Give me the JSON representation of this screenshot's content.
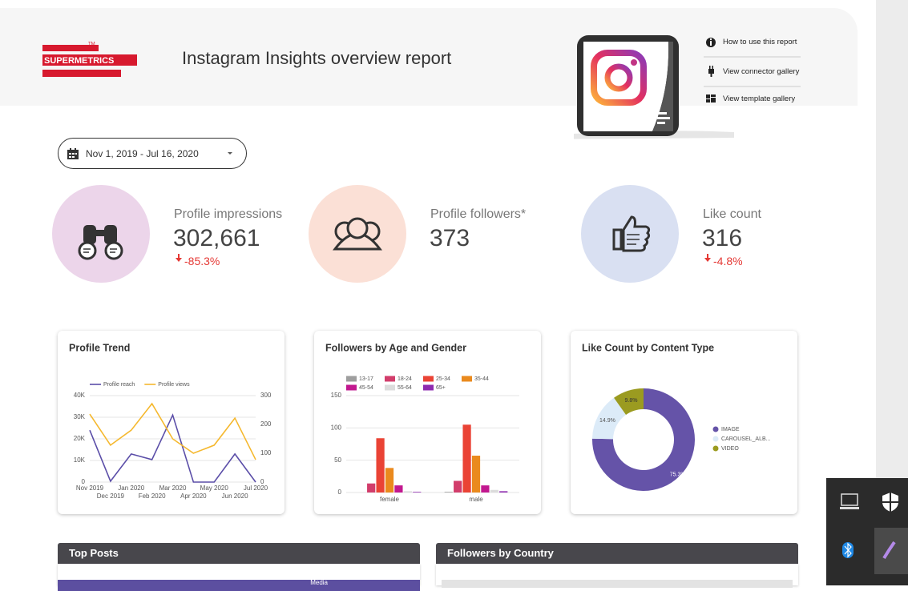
{
  "header": {
    "logo": "SUPERMETRICS",
    "trademark": "TM",
    "title": "Instagram Insights overview report",
    "links": [
      "How to use this report",
      "View connector gallery",
      "View template gallery"
    ]
  },
  "date_range": "Nov 1, 2019 - Jul 16, 2020",
  "kpis": [
    {
      "label": "Profile impressions",
      "value": "302,661",
      "change": "-85.3%"
    },
    {
      "label": "Profile followers*",
      "value": "373"
    },
    {
      "label": "Like count",
      "value": "316",
      "change": "-4.8%"
    }
  ],
  "chart_data": [
    {
      "type": "line",
      "title": "Profile Trend",
      "categories": [
        "Nov 2019",
        "Dec 2019",
        "Jan 2020",
        "Feb 2020",
        "Mar 2020",
        "Apr 2020",
        "May 2020",
        "Jun 2020",
        "Jul 2020"
      ],
      "series": [
        {
          "name": "Profile reach",
          "color": "#5b4ea8",
          "values": [
            24000,
            400,
            13000,
            10400,
            31000,
            0,
            0,
            13000,
            0
          ]
        },
        {
          "name": "Profile views",
          "color": "#f5b82e",
          "axis": "y2",
          "values": [
            236,
            128,
            180,
            272,
            150,
            100,
            128,
            222,
            78
          ]
        }
      ],
      "ylim": [
        0,
        40000
      ],
      "yticks": [
        0,
        {
          "value": 10000,
          "label": "10K"
        },
        {
          "value": 20000,
          "label": "20K"
        },
        {
          "value": 30000,
          "label": "30K"
        },
        {
          "value": 40000,
          "label": "40K"
        }
      ],
      "y2lim": [
        0,
        300
      ],
      "y2ticks": [
        0,
        100,
        200,
        300
      ],
      "grid": true
    },
    {
      "type": "bar",
      "title": "Followers by Age and Gender",
      "categories": [
        "female",
        "male"
      ],
      "series": [
        {
          "name": "13-17",
          "color": "#9e9e9e",
          "values": [
            0,
            1
          ]
        },
        {
          "name": "18-24",
          "color": "#d23d6b",
          "values": [
            14,
            18
          ]
        },
        {
          "name": "25-34",
          "color": "#ea4335",
          "values": [
            84,
            105
          ]
        },
        {
          "name": "35-44",
          "color": "#ea8a1e",
          "values": [
            38,
            57
          ]
        },
        {
          "name": "45-54",
          "color": "#c2188f",
          "values": [
            11,
            11
          ]
        },
        {
          "name": "55-64",
          "color": "#dcdcdc",
          "values": [
            2,
            4
          ]
        },
        {
          "name": "65+",
          "color": "#8e2bb0",
          "values": [
            1,
            2
          ]
        }
      ],
      "ylim": [
        0,
        150
      ],
      "yticks": [
        0,
        50,
        100,
        150
      ],
      "grid": true
    },
    {
      "type": "pie",
      "title": "Like Count by Content Type",
      "categories": [
        "IMAGE",
        "CAROUSEL_ALB...",
        "VIDEO"
      ],
      "values": [
        75.3,
        14.9,
        9.8
      ],
      "value_labels": [
        "75.3%",
        "14.9%",
        "9.8%"
      ],
      "colors": [
        "#6553a8",
        "#dcebf8",
        "#9b9b20"
      ],
      "legend": "right"
    }
  ],
  "sections": [
    "Top Posts",
    "Followers by Country"
  ],
  "table_header": "Media"
}
